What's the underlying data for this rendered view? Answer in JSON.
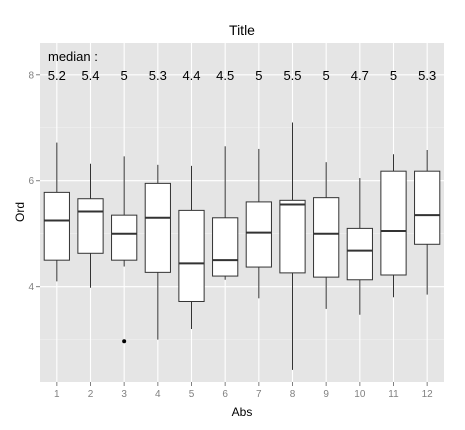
{
  "chart_data": {
    "type": "boxplot",
    "title": "Title",
    "xlabel": "Abs",
    "ylabel": "Ord",
    "categories": [
      "1",
      "2",
      "3",
      "4",
      "5",
      "6",
      "7",
      "8",
      "9",
      "10",
      "11",
      "12"
    ],
    "yticks": [
      4,
      6,
      8
    ],
    "ylim": [
      2.2,
      8.6
    ],
    "grid": true,
    "annotation_title": "median :",
    "annotation_y": 8,
    "median_labels": [
      "5.2",
      "5.4",
      "5",
      "5.3",
      "4.4",
      "4.5",
      "5",
      "5.5",
      "5",
      "4.7",
      "5",
      "5.3"
    ],
    "boxes": [
      {
        "category": "1",
        "whisker_low": 4.1,
        "q1": 4.5,
        "median": 5.25,
        "q3": 5.78,
        "whisker_high": 6.72,
        "outliers": []
      },
      {
        "category": "2",
        "whisker_low": 3.98,
        "q1": 4.63,
        "median": 5.42,
        "q3": 5.66,
        "whisker_high": 6.32,
        "outliers": []
      },
      {
        "category": "3",
        "whisker_low": 4.38,
        "q1": 4.5,
        "median": 5.0,
        "q3": 5.35,
        "whisker_high": 6.46,
        "outliers": [
          2.97
        ]
      },
      {
        "category": "4",
        "whisker_low": 3.0,
        "q1": 4.27,
        "median": 5.3,
        "q3": 5.95,
        "whisker_high": 6.3,
        "outliers": []
      },
      {
        "category": "5",
        "whisker_low": 3.2,
        "q1": 3.72,
        "median": 4.44,
        "q3": 5.44,
        "whisker_high": 6.28,
        "outliers": []
      },
      {
        "category": "6",
        "whisker_low": 4.13,
        "q1": 4.2,
        "median": 4.5,
        "q3": 5.3,
        "whisker_high": 6.65,
        "outliers": []
      },
      {
        "category": "7",
        "whisker_low": 3.78,
        "q1": 4.37,
        "median": 5.02,
        "q3": 5.6,
        "whisker_high": 6.6,
        "outliers": []
      },
      {
        "category": "8",
        "whisker_low": 2.43,
        "q1": 4.26,
        "median": 5.55,
        "q3": 5.63,
        "whisker_high": 7.1,
        "outliers": []
      },
      {
        "category": "9",
        "whisker_low": 3.58,
        "q1": 4.18,
        "median": 5.0,
        "q3": 5.68,
        "whisker_high": 6.35,
        "outliers": []
      },
      {
        "category": "10",
        "whisker_low": 3.47,
        "q1": 4.13,
        "median": 4.68,
        "q3": 5.1,
        "whisker_high": 6.05,
        "outliers": []
      },
      {
        "category": "11",
        "whisker_low": 3.8,
        "q1": 4.22,
        "median": 5.05,
        "q3": 6.18,
        "whisker_high": 6.5,
        "outliers": []
      },
      {
        "category": "12",
        "whisker_low": 3.85,
        "q1": 4.8,
        "median": 5.35,
        "q3": 6.18,
        "whisker_high": 6.58,
        "outliers": []
      }
    ],
    "colors": {
      "panel_bg": "#e5e5e5",
      "grid": "#ffffff",
      "box_fill": "#ffffff",
      "box_stroke": "#333333",
      "tick_text": "#808080"
    }
  }
}
